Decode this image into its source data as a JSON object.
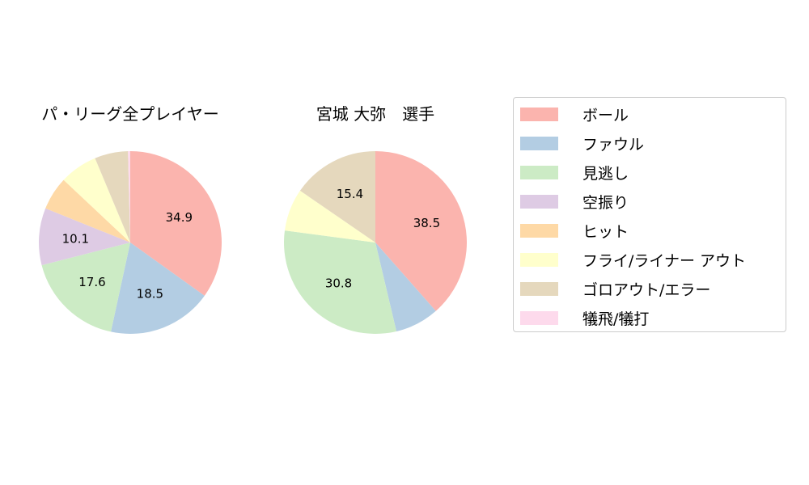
{
  "chart_data": [
    {
      "type": "pie",
      "title": "パ・リーグ全プレイヤー",
      "categories": [
        "ボール",
        "ファウル",
        "見逃し",
        "空振り",
        "ヒット",
        "フライ/ライナー アウト",
        "ゴロアウト/エラー",
        "犠飛/犠打"
      ],
      "values": [
        34.9,
        18.5,
        17.6,
        10.1,
        5.9,
        6.7,
        5.9,
        0.4
      ],
      "start_angle": 90,
      "direction": "clockwise"
    },
    {
      "type": "pie",
      "title": "宮城 大弥　選手",
      "categories": [
        "ボール",
        "ファウル",
        "見逃し",
        "空振り",
        "ヒット",
        "フライ/ライナー アウト",
        "ゴロアウト/エラー",
        "犠飛/犠打"
      ],
      "values": [
        38.5,
        7.8,
        30.8,
        0,
        0,
        7.5,
        15.4,
        0
      ],
      "start_angle": 90,
      "direction": "clockwise"
    }
  ],
  "legend": {
    "placement": "right",
    "items": [
      "ボール",
      "ファウル",
      "見逃し",
      "空振り",
      "ヒット",
      "フライ/ライナー アウト",
      "ゴロアウト/エラー",
      "犠飛/犠打"
    ]
  },
  "colors": [
    "#fbb4ae",
    "#b3cde3",
    "#ccebc5",
    "#decbe4",
    "#fed9a6",
    "#ffffcc",
    "#e5d8bd",
    "#fddaec"
  ]
}
